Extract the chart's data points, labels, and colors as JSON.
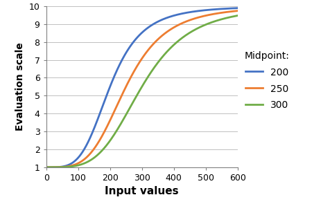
{
  "title": "",
  "xlabel": "Input values",
  "ylabel": "Evaluation scale",
  "xlim": [
    0,
    600
  ],
  "ylim": [
    1,
    10
  ],
  "xticks": [
    0,
    100,
    200,
    300,
    400,
    500,
    600
  ],
  "yticks": [
    1,
    2,
    3,
    4,
    5,
    6,
    7,
    8,
    9,
    10
  ],
  "midpoints": [
    200,
    250,
    300
  ],
  "k": 4,
  "colors": [
    "#4472C4",
    "#ED7D31",
    "#70AD47"
  ],
  "legend_title": "Midpoint:",
  "legend_labels": [
    "200",
    "250",
    "300"
  ],
  "background_color": "#FFFFFF",
  "grid_color": "#C0C0C0",
  "xlabel_fontsize": 11,
  "ylabel_fontsize": 10,
  "legend_fontsize": 10,
  "tick_fontsize": 9,
  "linewidth": 2.0
}
